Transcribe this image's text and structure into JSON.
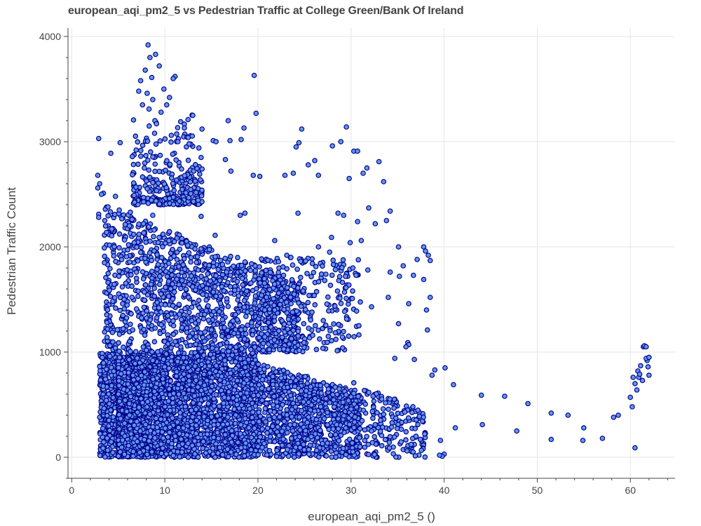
{
  "chart_data": {
    "type": "scatter",
    "title": "european_aqi_pm2_5 vs Pedestrian Traffic at College Green/Bank Of Ireland",
    "xlabel": "european_aqi_pm2_5 ()",
    "ylabel": "Pedestrian Traffic Count",
    "xlim": [
      -0.4,
      64.8
    ],
    "ylim": [
      -200,
      4080
    ],
    "xticks": [
      0,
      10,
      20,
      30,
      40,
      50,
      60
    ],
    "yticks": [
      0,
      1000,
      2000,
      3000,
      4000
    ],
    "grid": true,
    "legend": "none",
    "marker_fill": "#6495ED",
    "marker_edge": "#00008B",
    "grid_color": "#e5e5e5",
    "series": [
      {
        "points": [
          [
            8.2,
            3920
          ],
          [
            9.0,
            3830
          ],
          [
            8.4,
            3800
          ],
          [
            7.9,
            3680
          ],
          [
            9.4,
            3720
          ],
          [
            8.6,
            3610
          ],
          [
            11.1,
            3620
          ],
          [
            10.9,
            3600
          ],
          [
            7.4,
            3580
          ],
          [
            19.6,
            3630
          ],
          [
            7.2,
            3480
          ],
          [
            8.1,
            3460
          ],
          [
            9.9,
            3500
          ],
          [
            10.5,
            3420
          ],
          [
            8.7,
            3400
          ],
          [
            7.6,
            3350
          ],
          [
            8.3,
            3310
          ],
          [
            9.6,
            3280
          ],
          [
            10.2,
            3350
          ],
          [
            12.5,
            3210
          ],
          [
            13.0,
            3250
          ],
          [
            11.7,
            3190
          ],
          [
            16.8,
            3200
          ],
          [
            19.8,
            3270
          ],
          [
            9.1,
            3170
          ],
          [
            10.7,
            3060
          ],
          [
            8.9,
            3080
          ],
          [
            12.1,
            3130
          ],
          [
            18.5,
            3130
          ],
          [
            24.7,
            3120
          ],
          [
            29.5,
            3140
          ],
          [
            2.9,
            3030
          ],
          [
            5.2,
            2990
          ],
          [
            11.4,
            3000
          ],
          [
            15.2,
            3010
          ],
          [
            15.5,
            3000
          ],
          [
            17.0,
            3010
          ],
          [
            18.2,
            3020
          ],
          [
            24.4,
            2990
          ],
          [
            28.9,
            3000
          ],
          [
            30.3,
            2910
          ],
          [
            30.7,
            2910
          ],
          [
            4.2,
            2890
          ],
          [
            9.5,
            2870
          ],
          [
            13.9,
            2850
          ],
          [
            16.5,
            2830
          ],
          [
            26.1,
            2820
          ],
          [
            33.0,
            2810
          ],
          [
            24.1,
            2950
          ],
          [
            28.0,
            2960
          ],
          [
            2.8,
            2680
          ],
          [
            3.0,
            2600
          ],
          [
            3.4,
            2510
          ],
          [
            3.2,
            2500
          ],
          [
            2.8,
            2560
          ],
          [
            4.7,
            2480
          ],
          [
            6.7,
            2490
          ],
          [
            7.8,
            2750
          ],
          [
            11.8,
            2740
          ],
          [
            14.0,
            2740
          ],
          [
            17.1,
            2720
          ],
          [
            19.5,
            2680
          ],
          [
            20.2,
            2670
          ],
          [
            22.9,
            2680
          ],
          [
            23.8,
            2700
          ],
          [
            25.4,
            2780
          ],
          [
            26.5,
            2680
          ],
          [
            29.8,
            2650
          ],
          [
            31.3,
            2700
          ],
          [
            31.7,
            2750
          ],
          [
            33.5,
            2620
          ],
          [
            2.9,
            2310
          ],
          [
            2.9,
            2280
          ],
          [
            3.9,
            2380
          ],
          [
            5.1,
            2350
          ],
          [
            6.3,
            2330
          ],
          [
            8.7,
            2300
          ],
          [
            13.9,
            2290
          ],
          [
            18.1,
            2300
          ],
          [
            18.6,
            2320
          ],
          [
            24.3,
            2320
          ],
          [
            28.6,
            2320
          ],
          [
            29.2,
            2300
          ],
          [
            31.9,
            2370
          ],
          [
            34.2,
            2340
          ],
          [
            33.8,
            2250
          ],
          [
            32.6,
            2220
          ],
          [
            30.7,
            2240
          ],
          [
            4.3,
            2170
          ],
          [
            6.2,
            2200
          ],
          [
            9.8,
            2120
          ],
          [
            15.4,
            2110
          ],
          [
            21.8,
            2060
          ],
          [
            26.5,
            2000
          ],
          [
            27.9,
            2090
          ],
          [
            29.9,
            2040
          ],
          [
            31.1,
            2060
          ],
          [
            35.1,
            2000
          ],
          [
            37.8,
            2000
          ],
          [
            38.0,
            1960
          ],
          [
            38.3,
            1920
          ],
          [
            38.5,
            1870
          ],
          [
            35.6,
            1820
          ],
          [
            34.2,
            1760
          ],
          [
            27.7,
            1950
          ],
          [
            23.1,
            1920
          ],
          [
            27.3,
            1740
          ],
          [
            29.4,
            1720
          ],
          [
            30.2,
            1800
          ],
          [
            31.8,
            1780
          ],
          [
            35.2,
            1720
          ],
          [
            37.8,
            1690
          ],
          [
            37.1,
            1880
          ],
          [
            36.7,
            1730
          ],
          [
            29.3,
            1570
          ],
          [
            34.0,
            1520
          ],
          [
            38.5,
            1520
          ],
          [
            36.2,
            1460
          ],
          [
            32.2,
            1430
          ],
          [
            30.6,
            1390
          ],
          [
            38.1,
            1400
          ],
          [
            35.1,
            1270
          ],
          [
            38.2,
            1210
          ],
          [
            36.1,
            1090
          ],
          [
            36.2,
            1070
          ],
          [
            35.9,
            1050
          ],
          [
            29.1,
            1040
          ],
          [
            34.7,
            940
          ],
          [
            36.8,
            930
          ],
          [
            39.0,
            830
          ],
          [
            40.1,
            850
          ],
          [
            38.7,
            780
          ],
          [
            41.0,
            690
          ],
          [
            44.0,
            590
          ],
          [
            46.5,
            580
          ],
          [
            49.0,
            510
          ],
          [
            51.5,
            420
          ],
          [
            53.3,
            400
          ],
          [
            55.0,
            280
          ],
          [
            57.0,
            180
          ],
          [
            54.9,
            160
          ],
          [
            51.5,
            170
          ],
          [
            47.8,
            250
          ],
          [
            44.1,
            310
          ],
          [
            41.2,
            280
          ],
          [
            39.6,
            160
          ],
          [
            40.0,
            30
          ],
          [
            39.8,
            10
          ],
          [
            39.5,
            20
          ],
          [
            58.2,
            380
          ],
          [
            58.7,
            400
          ],
          [
            60.0,
            570
          ],
          [
            60.2,
            480
          ],
          [
            60.3,
            760
          ],
          [
            60.5,
            700
          ],
          [
            60.8,
            820
          ],
          [
            61.1,
            870
          ],
          [
            61.4,
            1050
          ],
          [
            61.5,
            1060
          ],
          [
            61.7,
            1050
          ],
          [
            61.8,
            920
          ],
          [
            61.9,
            860
          ],
          [
            62.0,
            780
          ],
          [
            61.7,
            940
          ],
          [
            61.3,
            730
          ],
          [
            60.7,
            640
          ],
          [
            60.9,
            760
          ],
          [
            60.5,
            90
          ],
          [
            61.0,
            790
          ],
          [
            62.0,
            950
          ]
        ]
      }
    ]
  }
}
